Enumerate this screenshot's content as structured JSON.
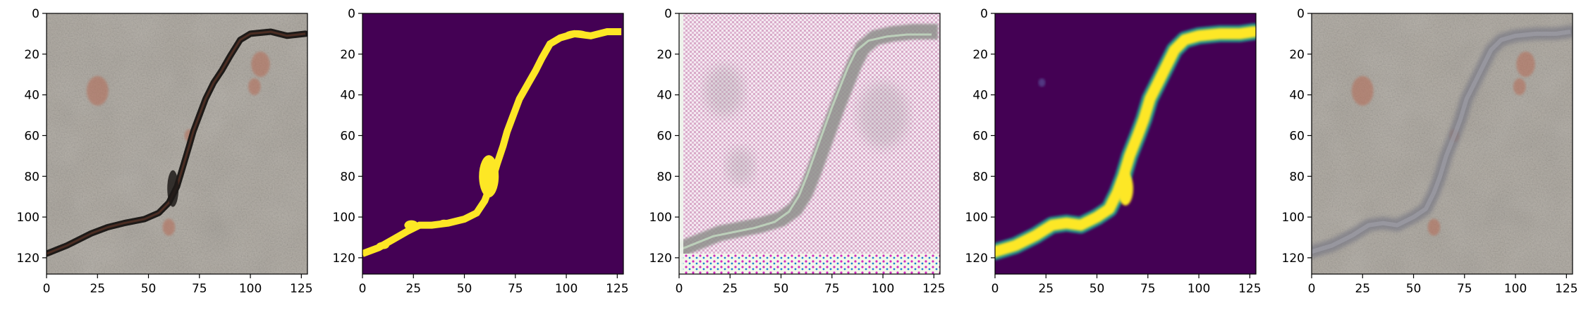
{
  "figure": {
    "panel_count": 5
  },
  "chart_data": [
    {
      "type": "image",
      "content": "concrete surface photograph with a dark crack running from lower-left to upper-right",
      "colors": [
        "#9a968f",
        "#b3aea6",
        "#7d7a74",
        "#1d1a18",
        "#b56a55"
      ],
      "xlim": [
        0,
        128
      ],
      "ylim": [
        128,
        0
      ],
      "xticks": [
        0,
        25,
        50,
        75,
        100,
        125
      ],
      "yticks": [
        0,
        20,
        40,
        60,
        80,
        100,
        120
      ],
      "crack_path": [
        [
          0,
          118
        ],
        [
          10,
          114
        ],
        [
          22,
          108
        ],
        [
          30,
          105
        ],
        [
          38,
          103
        ],
        [
          48,
          101
        ],
        [
          55,
          98
        ],
        [
          60,
          93
        ],
        [
          64,
          85
        ],
        [
          67,
          75
        ],
        [
          70,
          65
        ],
        [
          72,
          58
        ],
        [
          75,
          50
        ],
        [
          78,
          42
        ],
        [
          82,
          34
        ],
        [
          86,
          28
        ],
        [
          90,
          21
        ],
        [
          95,
          13
        ],
        [
          100,
          10
        ],
        [
          110,
          9
        ],
        [
          118,
          11
        ],
        [
          127,
          10
        ]
      ]
    },
    {
      "type": "heatmap",
      "content": "binary crack mask (viridis)",
      "colors": [
        "#440154",
        "#fde725"
      ],
      "xlim": [
        0,
        128
      ],
      "ylim": [
        128,
        0
      ],
      "xticks": [
        0,
        25,
        50,
        75,
        100,
        125
      ],
      "yticks": [
        0,
        20,
        40,
        60,
        80,
        100,
        120
      ],
      "crack_path": [
        [
          0,
          118
        ],
        [
          8,
          115
        ],
        [
          15,
          111
        ],
        [
          22,
          107
        ],
        [
          28,
          104
        ],
        [
          34,
          104
        ],
        [
          42,
          103
        ],
        [
          50,
          101
        ],
        [
          56,
          98
        ],
        [
          60,
          92
        ],
        [
          63,
          84
        ],
        [
          66,
          74
        ],
        [
          69,
          65
        ],
        [
          71,
          58
        ],
        [
          74,
          50
        ],
        [
          77,
          42
        ],
        [
          81,
          35
        ],
        [
          85,
          28
        ],
        [
          88,
          22
        ],
        [
          92,
          15
        ],
        [
          97,
          12
        ],
        [
          104,
          10
        ],
        [
          112,
          11
        ],
        [
          120,
          9
        ],
        [
          127,
          9
        ]
      ]
    },
    {
      "type": "image",
      "content": "generated RGB image with pink/white checkerboard texture and a gray crack band",
      "colors": [
        "#eedbe8",
        "#d7a9c8",
        "#8f908c",
        "#f0f6e6",
        "#d02ac0"
      ],
      "xlim": [
        0,
        128
      ],
      "ylim": [
        128,
        0
      ],
      "xticks": [
        0,
        25,
        50,
        75,
        100,
        125
      ],
      "yticks": [
        0,
        20,
        40,
        60,
        80,
        100,
        120
      ],
      "crack_path": [
        [
          0,
          116
        ],
        [
          10,
          112
        ],
        [
          20,
          108
        ],
        [
          30,
          106
        ],
        [
          40,
          104
        ],
        [
          50,
          101
        ],
        [
          57,
          96
        ],
        [
          62,
          88
        ],
        [
          66,
          78
        ],
        [
          70,
          67
        ],
        [
          74,
          56
        ],
        [
          78,
          45
        ],
        [
          82,
          35
        ],
        [
          86,
          25
        ],
        [
          90,
          17
        ],
        [
          96,
          12
        ],
        [
          105,
          10
        ],
        [
          115,
          9
        ],
        [
          127,
          9
        ]
      ]
    },
    {
      "type": "heatmap",
      "content": "predicted crack probability map (viridis)",
      "colors": [
        "#440154",
        "#21918c",
        "#fde725"
      ],
      "xlim": [
        0,
        128
      ],
      "ylim": [
        128,
        0
      ],
      "xticks": [
        0,
        25,
        50,
        75,
        100,
        125
      ],
      "yticks": [
        0,
        20,
        40,
        60,
        80,
        100,
        120
      ],
      "crack_path": [
        [
          0,
          117
        ],
        [
          10,
          114
        ],
        [
          20,
          109
        ],
        [
          28,
          104
        ],
        [
          35,
          103
        ],
        [
          42,
          104
        ],
        [
          50,
          100
        ],
        [
          56,
          96
        ],
        [
          60,
          88
        ],
        [
          63,
          80
        ],
        [
          66,
          70
        ],
        [
          70,
          60
        ],
        [
          73,
          52
        ],
        [
          76,
          42
        ],
        [
          80,
          34
        ],
        [
          84,
          26
        ],
        [
          88,
          18
        ],
        [
          93,
          13
        ],
        [
          100,
          11
        ],
        [
          110,
          10
        ],
        [
          120,
          10
        ],
        [
          127,
          9
        ]
      ]
    },
    {
      "type": "image",
      "content": "concrete photograph with a smooth gray overlay along the crack",
      "colors": [
        "#9a968f",
        "#b3aea6",
        "#7c7c86",
        "#b56a55"
      ],
      "xlim": [
        0,
        128
      ],
      "ylim": [
        128,
        0
      ],
      "xticks": [
        0,
        25,
        50,
        75,
        100,
        125
      ],
      "yticks": [
        0,
        20,
        40,
        60,
        80,
        100,
        120
      ],
      "crack_path": [
        [
          0,
          117
        ],
        [
          10,
          114
        ],
        [
          20,
          109
        ],
        [
          28,
          104
        ],
        [
          35,
          103
        ],
        [
          42,
          104
        ],
        [
          50,
          100
        ],
        [
          56,
          96
        ],
        [
          60,
          88
        ],
        [
          63,
          80
        ],
        [
          66,
          70
        ],
        [
          70,
          60
        ],
        [
          73,
          52
        ],
        [
          76,
          42
        ],
        [
          80,
          34
        ],
        [
          84,
          26
        ],
        [
          88,
          18
        ],
        [
          93,
          13
        ],
        [
          100,
          11
        ],
        [
          110,
          10
        ],
        [
          120,
          10
        ],
        [
          127,
          9
        ]
      ]
    }
  ]
}
